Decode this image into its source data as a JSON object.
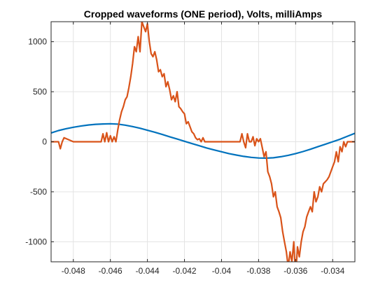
{
  "chart_data": {
    "type": "line",
    "title": "Cropped waveforms (ONE period), Volts, milliAmps",
    "xlabel": "",
    "ylabel": "",
    "xlim": [
      -0.0492,
      -0.0328
    ],
    "ylim": [
      -1200,
      1200
    ],
    "xticks": [
      -0.048,
      -0.046,
      -0.044,
      -0.042,
      -0.04,
      -0.038,
      -0.036,
      -0.034
    ],
    "xtick_labels": [
      "-0.048",
      "-0.046",
      "-0.044",
      "-0.042",
      "-0.04",
      "-0.038",
      "-0.036",
      "-0.034"
    ],
    "yticks": [
      -1000,
      -500,
      0,
      500,
      1000
    ],
    "ytick_labels": [
      "-1000",
      "-500",
      "0",
      "500",
      "1000"
    ],
    "grid": true,
    "legend": "none",
    "colors": {
      "series1": "#0072BD",
      "series2": "#D95319"
    },
    "series": [
      {
        "color": "#0072BD",
        "x": [
          -0.0492,
          -0.0488,
          -0.0484,
          -0.048,
          -0.0476,
          -0.0472,
          -0.0468,
          -0.0464,
          -0.046,
          -0.0456,
          -0.0452,
          -0.0448,
          -0.0444,
          -0.044,
          -0.0436,
          -0.0432,
          -0.0428,
          -0.0424,
          -0.042,
          -0.0416,
          -0.0412,
          -0.0408,
          -0.0404,
          -0.04,
          -0.0396,
          -0.0392,
          -0.0388,
          -0.0384,
          -0.038,
          -0.0376,
          -0.0372,
          -0.0368,
          -0.0364,
          -0.036,
          -0.0356,
          -0.0352,
          -0.0348,
          -0.0344,
          -0.034,
          -0.0336,
          -0.0332,
          -0.0328
        ],
        "y": [
          88,
          112,
          130,
          145,
          157,
          167,
          174,
          178,
          180,
          176,
          166,
          152,
          135,
          115,
          95,
          73,
          50,
          27,
          5,
          -18,
          -40,
          -62,
          -82,
          -100,
          -118,
          -133,
          -146,
          -156,
          -162,
          -164,
          -160,
          -150,
          -136,
          -118,
          -98,
          -75,
          -50,
          -25,
          0,
          25,
          55,
          85
        ]
      },
      {
        "color": "#D95319",
        "x": [
          -0.0492,
          -0.0488,
          -0.0487,
          -0.0486,
          -0.0485,
          -0.048,
          -0.0475,
          -0.047,
          -0.0465,
          -0.0464,
          -0.0463,
          -0.0462,
          -0.0461,
          -0.046,
          -0.0459,
          -0.0458,
          -0.0457,
          -0.0456,
          -0.0455,
          -0.0454,
          -0.0453,
          -0.0452,
          -0.0451,
          -0.045,
          -0.0449,
          -0.0448,
          -0.0447,
          -0.0446,
          -0.0445,
          -0.0444,
          -0.0443,
          -0.0442,
          -0.0441,
          -0.044,
          -0.0439,
          -0.0438,
          -0.0437,
          -0.0436,
          -0.0435,
          -0.0434,
          -0.0433,
          -0.0432,
          -0.0431,
          -0.043,
          -0.0429,
          -0.0428,
          -0.0427,
          -0.0426,
          -0.0425,
          -0.0424,
          -0.0423,
          -0.0422,
          -0.0421,
          -0.042,
          -0.0419,
          -0.0418,
          -0.0417,
          -0.0416,
          -0.0415,
          -0.0414,
          -0.0413,
          -0.0412,
          -0.0411,
          -0.041,
          -0.0409,
          -0.0408,
          -0.0405,
          -0.04,
          -0.0395,
          -0.039,
          -0.0389,
          -0.0388,
          -0.0387,
          -0.0386,
          -0.0385,
          -0.0384,
          -0.0383,
          -0.0382,
          -0.0381,
          -0.038,
          -0.0379,
          -0.0378,
          -0.0377,
          -0.0376,
          -0.0375,
          -0.0374,
          -0.0373,
          -0.0372,
          -0.0371,
          -0.037,
          -0.0369,
          -0.0368,
          -0.0367,
          -0.0366,
          -0.0365,
          -0.0364,
          -0.0363,
          -0.0362,
          -0.0361,
          -0.036,
          -0.0359,
          -0.0358,
          -0.0357,
          -0.0356,
          -0.0355,
          -0.0354,
          -0.0353,
          -0.0352,
          -0.0351,
          -0.035,
          -0.0349,
          -0.0348,
          -0.0347,
          -0.0346,
          -0.0345,
          -0.0344,
          -0.0343,
          -0.0342,
          -0.0341,
          -0.034,
          -0.0339,
          -0.0338,
          -0.0337,
          -0.0336,
          -0.0335,
          -0.0334,
          -0.0333,
          -0.0332,
          -0.033,
          -0.0328
        ],
        "y": [
          0,
          0,
          -70,
          0,
          40,
          0,
          0,
          0,
          0,
          80,
          0,
          90,
          0,
          60,
          0,
          50,
          0,
          120,
          220,
          300,
          350,
          420,
          450,
          540,
          650,
          780,
          950,
          900,
          1050,
          900,
          1200,
          1150,
          1100,
          1180,
          1000,
          880,
          850,
          900,
          820,
          700,
          720,
          650,
          680,
          550,
          600,
          520,
          420,
          460,
          400,
          500,
          350,
          330,
          300,
          280,
          180,
          200,
          150,
          100,
          80,
          40,
          20,
          30,
          0,
          40,
          0,
          0,
          0,
          0,
          0,
          0,
          80,
          0,
          -60,
          80,
          0,
          0,
          50,
          -40,
          30,
          0,
          30,
          -60,
          -150,
          -100,
          -300,
          -350,
          -420,
          -550,
          -500,
          -650,
          -700,
          -760,
          -900,
          -1000,
          -1100,
          -1250,
          -1100,
          -1200,
          -1000,
          -1350,
          -1050,
          -1150,
          -1000,
          -900,
          -850,
          -750,
          -700,
          -650,
          -700,
          -500,
          -600,
          -550,
          -450,
          -500,
          -420,
          -400,
          -380,
          -350,
          -300,
          -250,
          -200,
          -100,
          -200,
          -50,
          -100,
          0,
          -50,
          0,
          0,
          0
        ]
      }
    ]
  }
}
